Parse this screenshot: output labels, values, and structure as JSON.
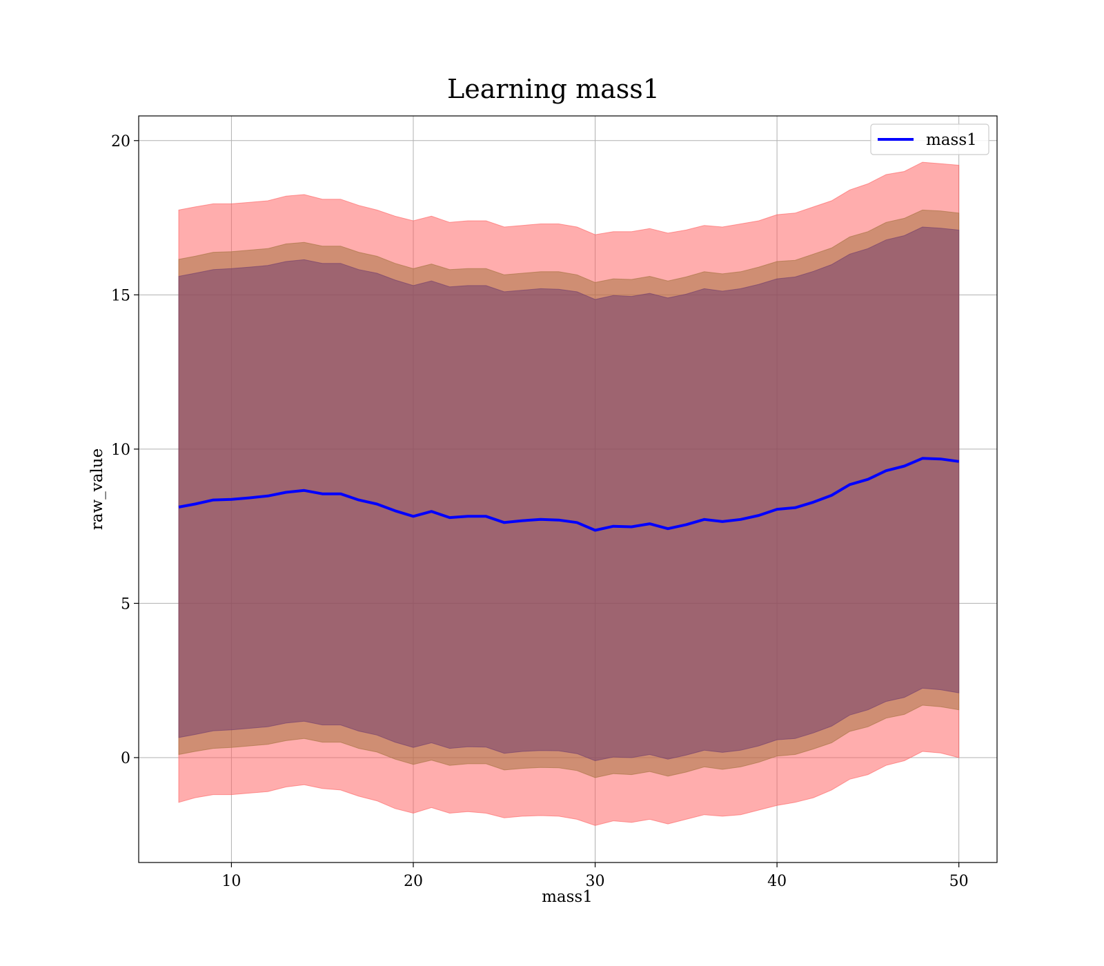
{
  "chart_data": {
    "type": "line",
    "title": "Learning mass1",
    "xlabel": "mass1",
    "ylabel": "raw_value",
    "xlim": [
      4.9,
      52.1
    ],
    "ylim": [
      -3.4,
      20.8
    ],
    "xticks": [
      10,
      20,
      30,
      40,
      50
    ],
    "yticks": [
      0,
      5,
      10,
      15,
      20
    ],
    "grid": true,
    "legend": {
      "position": "top-right",
      "entries": [
        "mass1"
      ]
    },
    "colors": {
      "line": "#0000ff",
      "band_outer": "#ff5c5c",
      "band_middle": "#a0703a",
      "band_inner": "#6e3a6e",
      "grid": "#b0b0b0"
    },
    "x": [
      7.1,
      8,
      9,
      10,
      11,
      12,
      13,
      14,
      15,
      16,
      17,
      18,
      19,
      20,
      21,
      22,
      23,
      24,
      25,
      26,
      27,
      28,
      29,
      30,
      31,
      32,
      33,
      34,
      35,
      36,
      37,
      38,
      39,
      40,
      41,
      42,
      43,
      44,
      45,
      46,
      47,
      48,
      49,
      50
    ],
    "series": [
      {
        "name": "mass1",
        "values": [
          8.12,
          8.22,
          8.35,
          8.37,
          8.42,
          8.48,
          8.6,
          8.66,
          8.55,
          8.55,
          8.35,
          8.22,
          8.0,
          7.82,
          7.98,
          7.78,
          7.82,
          7.82,
          7.62,
          7.68,
          7.72,
          7.7,
          7.62,
          7.37,
          7.5,
          7.48,
          7.58,
          7.42,
          7.55,
          7.72,
          7.65,
          7.72,
          7.85,
          8.05,
          8.1,
          8.28,
          8.5,
          8.85,
          9.02,
          9.3,
          9.45,
          9.7,
          9.68,
          9.6
        ]
      }
    ],
    "bands": [
      {
        "lower": [
          -1.45,
          -1.3,
          -1.2,
          -1.2,
          -1.15,
          -1.1,
          -0.95,
          -0.88,
          -1.0,
          -1.05,
          -1.25,
          -1.4,
          -1.65,
          -1.8,
          -1.62,
          -1.8,
          -1.75,
          -1.8,
          -1.95,
          -1.9,
          -1.88,
          -1.9,
          -2.0,
          -2.2,
          -2.05,
          -2.1,
          -2.0,
          -2.15,
          -2.0,
          -1.85,
          -1.9,
          -1.85,
          -1.7,
          -1.55,
          -1.45,
          -1.3,
          -1.05,
          -0.7,
          -0.55,
          -0.25,
          -0.1,
          0.2,
          0.15,
          0.0
        ],
        "upper": [
          17.75,
          17.85,
          17.95,
          17.95,
          18.0,
          18.05,
          18.2,
          18.25,
          18.1,
          18.1,
          17.9,
          17.75,
          17.55,
          17.4,
          17.55,
          17.35,
          17.4,
          17.4,
          17.2,
          17.25,
          17.3,
          17.3,
          17.2,
          16.95,
          17.05,
          17.05,
          17.15,
          17.0,
          17.1,
          17.25,
          17.2,
          17.3,
          17.4,
          17.6,
          17.65,
          17.85,
          18.05,
          18.4,
          18.6,
          18.9,
          19.0,
          19.3,
          19.25,
          19.2
        ]
      },
      {
        "lower": [
          0.1,
          0.2,
          0.3,
          0.33,
          0.38,
          0.43,
          0.55,
          0.62,
          0.5,
          0.5,
          0.3,
          0.18,
          -0.05,
          -0.22,
          -0.08,
          -0.25,
          -0.2,
          -0.2,
          -0.4,
          -0.35,
          -0.32,
          -0.33,
          -0.42,
          -0.65,
          -0.52,
          -0.55,
          -0.45,
          -0.6,
          -0.47,
          -0.3,
          -0.38,
          -0.3,
          -0.15,
          0.05,
          0.1,
          0.28,
          0.48,
          0.85,
          1.0,
          1.28,
          1.4,
          1.7,
          1.65,
          1.55
        ],
        "upper": [
          16.15,
          16.25,
          16.38,
          16.4,
          16.45,
          16.5,
          16.65,
          16.7,
          16.58,
          16.58,
          16.38,
          16.25,
          16.02,
          15.85,
          16.0,
          15.82,
          15.85,
          15.85,
          15.65,
          15.7,
          15.75,
          15.75,
          15.65,
          15.4,
          15.52,
          15.5,
          15.6,
          15.45,
          15.58,
          15.75,
          15.68,
          15.75,
          15.9,
          16.08,
          16.12,
          16.32,
          16.52,
          16.88,
          17.05,
          17.35,
          17.48,
          17.75,
          17.72,
          17.65
        ]
      },
      {
        "lower": [
          0.65,
          0.75,
          0.87,
          0.9,
          0.95,
          1.0,
          1.12,
          1.18,
          1.06,
          1.06,
          0.86,
          0.73,
          0.5,
          0.33,
          0.48,
          0.3,
          0.35,
          0.34,
          0.14,
          0.2,
          0.23,
          0.22,
          0.13,
          -0.1,
          0.02,
          0.0,
          0.1,
          -0.05,
          0.08,
          0.24,
          0.17,
          0.24,
          0.38,
          0.58,
          0.62,
          0.8,
          1.02,
          1.38,
          1.55,
          1.82,
          1.95,
          2.25,
          2.2,
          2.1
        ],
        "upper": [
          15.6,
          15.7,
          15.82,
          15.85,
          15.9,
          15.95,
          16.08,
          16.14,
          16.02,
          16.02,
          15.82,
          15.7,
          15.48,
          15.3,
          15.45,
          15.26,
          15.3,
          15.3,
          15.1,
          15.15,
          15.2,
          15.18,
          15.1,
          14.85,
          14.98,
          14.95,
          15.05,
          14.9,
          15.02,
          15.2,
          15.12,
          15.2,
          15.34,
          15.52,
          15.58,
          15.76,
          15.98,
          16.32,
          16.5,
          16.78,
          16.92,
          17.2,
          17.16,
          17.1
        ]
      }
    ]
  }
}
